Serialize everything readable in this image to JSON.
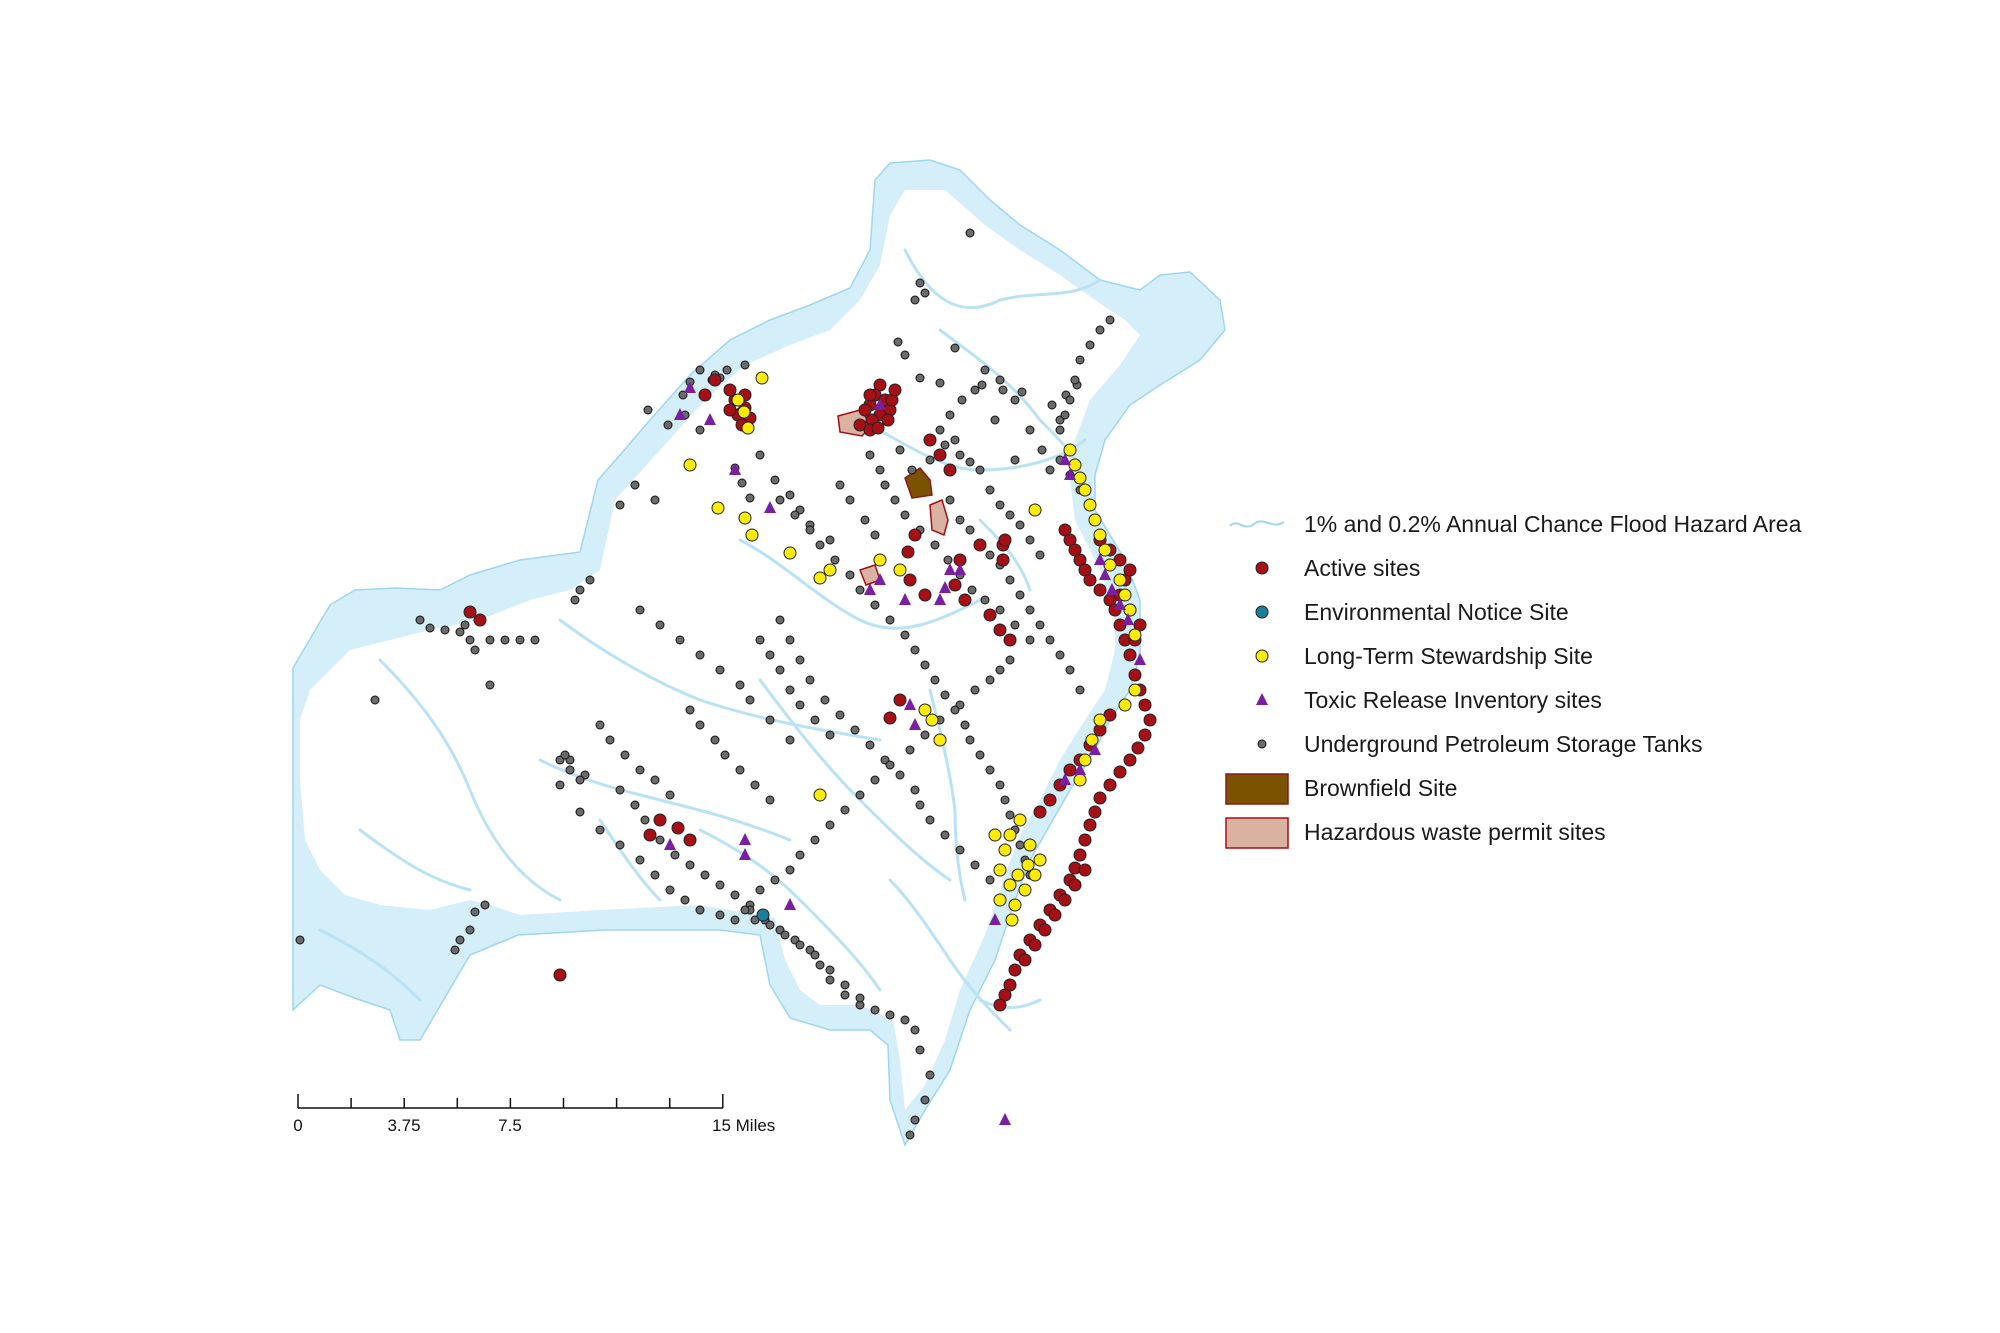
{
  "legend": {
    "items": [
      {
        "key": "flood",
        "label": "1% and 0.2% Annual Chance Flood Hazard Area",
        "symbol": "wave-line",
        "color": "#bfe6f7"
      },
      {
        "key": "active",
        "label": "Active sites",
        "symbol": "circle",
        "color": "#a50f15"
      },
      {
        "key": "env",
        "label": "Environmental Notice Site",
        "symbol": "circle",
        "color": "#1b7f9a"
      },
      {
        "key": "lts",
        "label": "Long-Term Stewardship Site",
        "symbol": "circle",
        "color": "#ffec00"
      },
      {
        "key": "tri",
        "label": "Toxic Release Inventory sites",
        "symbol": "triangle",
        "color": "#7a1fa2"
      },
      {
        "key": "ust",
        "label": "Underground Petroleum Storage Tanks",
        "symbol": "small-circle",
        "color": "#6b6b6b"
      },
      {
        "key": "brownfield",
        "label": "Brownfield Site",
        "symbol": "rect",
        "color": "#7a5200"
      },
      {
        "key": "hazwaste",
        "label": "Hazardous waste permit sites",
        "symbol": "rect",
        "color": "#d9b2a2"
      }
    ]
  },
  "scalebar": {
    "labels": [
      "0",
      "3.75",
      "7.5",
      "15 Miles"
    ],
    "values": [
      0,
      3.75,
      7.5,
      15
    ],
    "max": 15
  },
  "colors": {
    "flood_fill": "#d4eefa",
    "flood_stroke": "#9fd6f0",
    "river": "#b9e2f5"
  }
}
